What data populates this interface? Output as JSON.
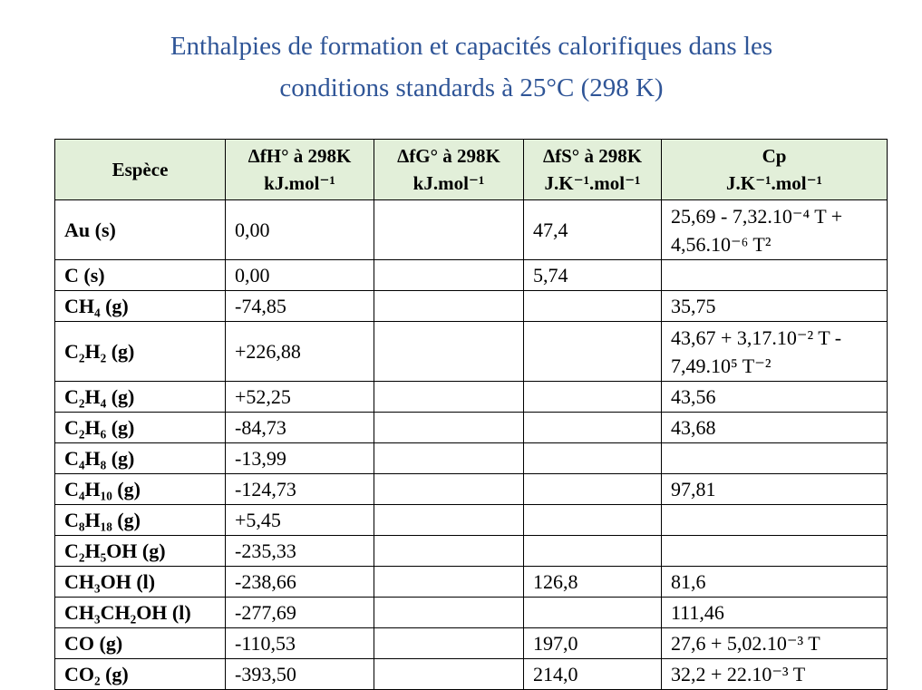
{
  "title_line1": "Enthalpies de formation et capacités calorifiques dans les",
  "title_line2": "conditions standards à 25°C (298 K)",
  "headers": [
    {
      "l1": "Espèce",
      "l2": ""
    },
    {
      "l1": "ΔfH° à 298K",
      "l2": "kJ.mol⁻¹"
    },
    {
      "l1": "ΔfG° à 298K",
      "l2": "kJ.mol⁻¹"
    },
    {
      "l1": "ΔfS° à 298K",
      "l2": "J.K⁻¹.mol⁻¹"
    },
    {
      "l1": "Cp",
      "l2": "J.K⁻¹.mol⁻¹"
    }
  ],
  "rows": [
    {
      "species": "Au (s)",
      "dH": "0,00",
      "dG": "",
      "dS": "47,4",
      "cp": "25,69 - 7,32.10⁻⁴ T + 4,56.10⁻⁶ T²"
    },
    {
      "species": "C (s)",
      "dH": "0,00",
      "dG": "",
      "dS": "5,74",
      "cp": ""
    },
    {
      "species": "CH₄ (g)",
      "dH": "-74,85",
      "dG": "",
      "dS": "",
      "cp": "35,75"
    },
    {
      "species": "C₂H₂ (g)",
      "dH": "+226,88",
      "dG": "",
      "dS": "",
      "cp": "43,67 + 3,17.10⁻² T - 7,49.10⁵ T⁻²"
    },
    {
      "species": "C₂H₄ (g)",
      "dH": "+52,25",
      "dG": "",
      "dS": "",
      "cp": "43,56"
    },
    {
      "species": "C₂H₆ (g)",
      "dH": "-84,73",
      "dG": "",
      "dS": "",
      "cp": "43,68"
    },
    {
      "species": "C₄H₈ (g)",
      "dH": "-13,99",
      "dG": "",
      "dS": "",
      "cp": ""
    },
    {
      "species": "C₄H₁₀ (g)",
      "dH": "-124,73",
      "dG": "",
      "dS": "",
      "cp": "97,81"
    },
    {
      "species": "C₈H₁₈ (g)",
      "dH": "+5,45",
      "dG": "",
      "dS": "",
      "cp": ""
    },
    {
      "species": "C₂H₅OH (g)",
      "dH": "-235,33",
      "dG": "",
      "dS": "",
      "cp": ""
    },
    {
      "species": "CH₃OH (l)",
      "dH": "-238,66",
      "dG": "",
      "dS": "126,8",
      "cp": "81,6"
    },
    {
      "species": "CH₃CH₂OH (l)",
      "dH": "-277,69",
      "dG": "",
      "dS": "",
      "cp": "111,46"
    },
    {
      "species": "CO (g)",
      "dH": "-110,53",
      "dG": "",
      "dS": "197,0",
      "cp": "27,6 + 5,02.10⁻³ T"
    },
    {
      "species": "CO₂ (g)",
      "dH": "-393,50",
      "dG": "",
      "dS": "214,0",
      "cp": "32,2 + 22.10⁻³ T"
    }
  ]
}
